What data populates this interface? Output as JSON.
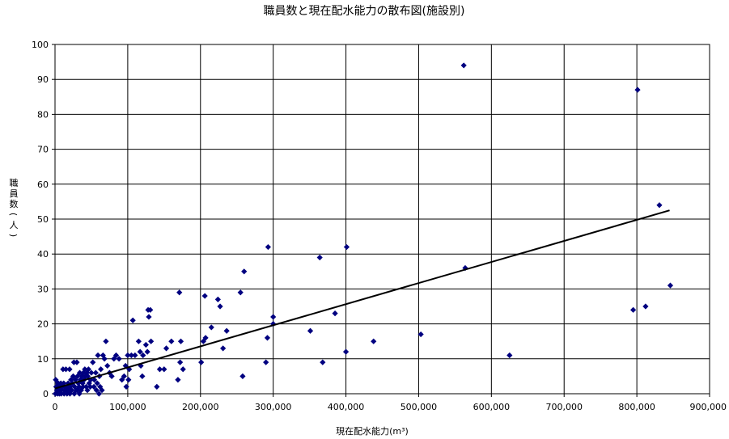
{
  "chart_data": {
    "type": "scatter",
    "title": "職員数と現在配水能力の散布図(施設別)",
    "xlabel": "現在配水能力(m³)",
    "ylabel": "職員数(人)",
    "xlim": [
      0,
      900000
    ],
    "ylim": [
      0,
      100
    ],
    "x_ticks": [
      "0",
      "100,000",
      "200,000",
      "300,000",
      "400,000",
      "500,000",
      "600,000",
      "700,000",
      "800,000",
      "900,000"
    ],
    "y_ticks": [
      "0",
      "10",
      "20",
      "30",
      "40",
      "50",
      "60",
      "70",
      "80",
      "90",
      "100"
    ],
    "grid": true,
    "legend": "none",
    "marker": "diamond",
    "colors": {
      "points": "#000080",
      "trendline": "#000000",
      "grid": "#000000"
    },
    "trendline": {
      "type": "linear",
      "x": [
        0,
        845000
      ],
      "y": [
        1.5,
        52.5
      ]
    },
    "points": [
      [
        562000,
        94
      ],
      [
        801000,
        87
      ],
      [
        831000,
        54
      ],
      [
        846000,
        31
      ],
      [
        812000,
        25
      ],
      [
        795000,
        24
      ],
      [
        564000,
        36
      ],
      [
        625000,
        11
      ],
      [
        503000,
        17
      ],
      [
        438000,
        15
      ],
      [
        401000,
        42
      ],
      [
        400000,
        12
      ],
      [
        385000,
        23
      ],
      [
        364000,
        39
      ],
      [
        368000,
        9
      ],
      [
        351000,
        18
      ],
      [
        293000,
        42
      ],
      [
        300000,
        22
      ],
      [
        300000,
        20
      ],
      [
        292000,
        16
      ],
      [
        290000,
        9
      ],
      [
        260000,
        35
      ],
      [
        255000,
        29
      ],
      [
        258000,
        5
      ],
      [
        236000,
        18
      ],
      [
        231000,
        13
      ],
      [
        227000,
        25
      ],
      [
        224000,
        27
      ],
      [
        215000,
        19
      ],
      [
        207000,
        16
      ],
      [
        206000,
        28
      ],
      [
        204000,
        15
      ],
      [
        201000,
        9
      ],
      [
        176000,
        7
      ],
      [
        173000,
        15
      ],
      [
        172000,
        9
      ],
      [
        171000,
        29
      ],
      [
        169000,
        4
      ],
      [
        160000,
        15
      ],
      [
        153000,
        13
      ],
      [
        150000,
        7
      ],
      [
        144000,
        7
      ],
      [
        140000,
        2
      ],
      [
        132000,
        15
      ],
      [
        131000,
        24
      ],
      [
        129000,
        22
      ],
      [
        128000,
        24
      ],
      [
        127000,
        12
      ],
      [
        125000,
        14
      ],
      [
        121000,
        11
      ],
      [
        120000,
        5
      ],
      [
        118000,
        8
      ],
      [
        117000,
        12
      ],
      [
        115000,
        15
      ],
      [
        110000,
        11
      ],
      [
        107000,
        21
      ],
      [
        105000,
        11
      ],
      [
        102000,
        7
      ],
      [
        101000,
        4
      ],
      [
        100000,
        11
      ],
      [
        98000,
        2
      ],
      [
        97000,
        8
      ],
      [
        95000,
        5
      ],
      [
        92000,
        4
      ],
      [
        88000,
        10
      ],
      [
        84000,
        11
      ],
      [
        81000,
        10
      ],
      [
        78000,
        5
      ],
      [
        75000,
        6
      ],
      [
        72000,
        8
      ],
      [
        70000,
        15
      ],
      [
        68000,
        10
      ],
      [
        66000,
        11
      ],
      [
        63000,
        7
      ],
      [
        61000,
        5
      ],
      [
        59000,
        11
      ],
      [
        58000,
        3
      ],
      [
        57000,
        1
      ],
      [
        56000,
        6
      ],
      [
        54000,
        4
      ],
      [
        52000,
        9
      ],
      [
        50000,
        6
      ],
      [
        49000,
        4
      ],
      [
        47000,
        3
      ],
      [
        46000,
        7
      ],
      [
        45000,
        5
      ],
      [
        44000,
        6
      ],
      [
        43000,
        2
      ],
      [
        42000,
        5
      ],
      [
        41000,
        7
      ],
      [
        40000,
        4
      ],
      [
        39000,
        6
      ],
      [
        38000,
        3
      ],
      [
        37000,
        5
      ],
      [
        36000,
        1
      ],
      [
        35000,
        4
      ],
      [
        34000,
        6
      ],
      [
        33000,
        2
      ],
      [
        32000,
        3
      ],
      [
        31000,
        5
      ],
      [
        30000,
        9
      ],
      [
        29000,
        1
      ],
      [
        28000,
        4
      ],
      [
        27000,
        2
      ],
      [
        26000,
        9
      ],
      [
        25000,
        5
      ],
      [
        24000,
        3
      ],
      [
        23000,
        1
      ],
      [
        22000,
        4
      ],
      [
        21000,
        2
      ],
      [
        20000,
        7
      ],
      [
        19000,
        1
      ],
      [
        18000,
        3
      ],
      [
        17000,
        2
      ],
      [
        16000,
        1
      ],
      [
        15000,
        7
      ],
      [
        14000,
        2
      ],
      [
        13000,
        1
      ],
      [
        12000,
        3
      ],
      [
        11000,
        7
      ],
      [
        10000,
        2
      ],
      [
        9000,
        1
      ],
      [
        8000,
        3
      ],
      [
        7000,
        2
      ],
      [
        6000,
        0
      ],
      [
        5000,
        1
      ],
      [
        4000,
        3
      ],
      [
        3000,
        1
      ],
      [
        2000,
        2
      ],
      [
        1000,
        4
      ],
      [
        500,
        0
      ],
      [
        1500,
        2
      ],
      [
        2500,
        1
      ],
      [
        3500,
        0
      ],
      [
        4500,
        3
      ],
      [
        8500,
        0
      ],
      [
        12500,
        0
      ],
      [
        16500,
        0
      ],
      [
        20500,
        0
      ],
      [
        26500,
        0
      ],
      [
        30500,
        1
      ],
      [
        33500,
        0
      ],
      [
        38500,
        2
      ],
      [
        44500,
        1
      ],
      [
        48500,
        2
      ],
      [
        53500,
        2
      ],
      [
        60500,
        0
      ],
      [
        62000,
        2
      ],
      [
        64500,
        1
      ]
    ]
  }
}
